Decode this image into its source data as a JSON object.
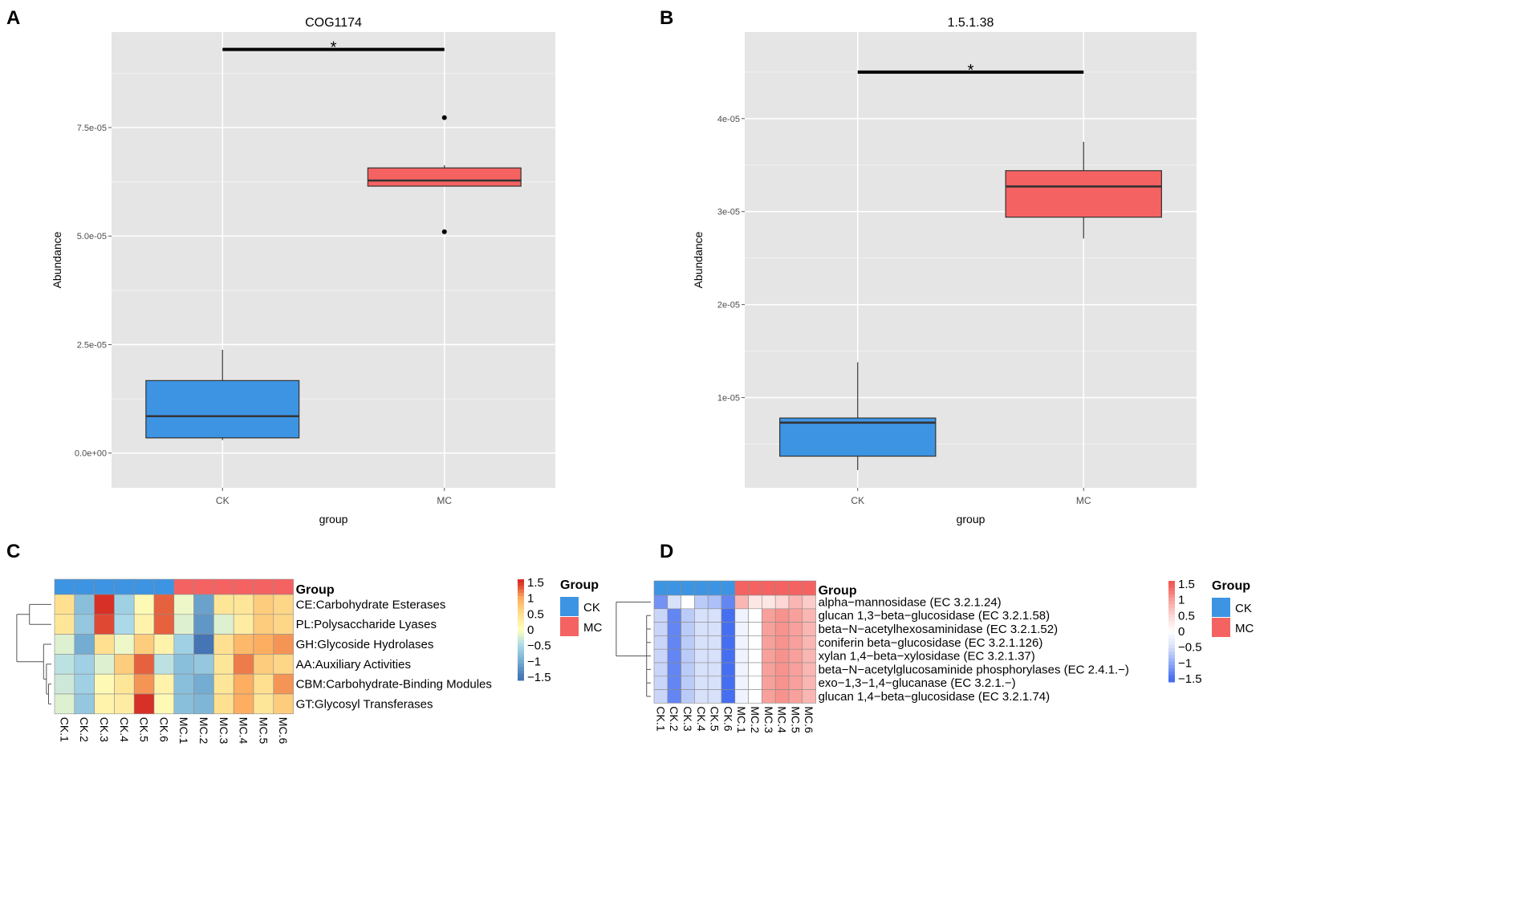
{
  "panels": {
    "A": "A",
    "B": "B",
    "C": "C",
    "D": "D"
  },
  "colors": {
    "CK": "#3d94e3",
    "MC": "#f56262",
    "panel_bg": "#e5e5e5",
    "grid": "#ffffff"
  },
  "chart_data": [
    {
      "id": "A",
      "type": "box",
      "title": "COG1174",
      "xlabel": "group",
      "ylabel": "Abundance",
      "ylim": [
        -8e-06,
        9.7e-05
      ],
      "yticks": [
        0,
        2.5e-05,
        5e-05,
        7.5e-05
      ],
      "ytick_labels": [
        "0.0e+00",
        "2.5e-05",
        "5.0e-05",
        "7.5e-05"
      ],
      "categories": [
        "CK",
        "MC"
      ],
      "boxes": [
        {
          "group": "CK",
          "min": 3e-06,
          "q1": 3.5e-06,
          "median": 8.5e-06,
          "q3": 1.67e-05,
          "max": 2.38e-05,
          "outliers": []
        },
        {
          "group": "MC",
          "min": 6.15e-05,
          "q1": 6.15e-05,
          "median": 6.28e-05,
          "q3": 6.57e-05,
          "max": 6.63e-05,
          "outliers": [
            7.73e-05,
            5.1e-05
          ]
        }
      ],
      "significance": {
        "label": "*",
        "value": 9.3e-05
      }
    },
    {
      "id": "B",
      "type": "box",
      "title": "1.5.1.38",
      "xlabel": "group",
      "ylabel": "Abundance",
      "ylim": [
        3e-07,
        4.93e-05
      ],
      "yticks": [
        1e-05,
        2e-05,
        3e-05,
        4e-05
      ],
      "ytick_labels": [
        "1e-05",
        "2e-05",
        "3e-05",
        "4e-05"
      ],
      "categories": [
        "CK",
        "MC"
      ],
      "boxes": [
        {
          "group": "CK",
          "min": 2.2e-06,
          "q1": 3.7e-06,
          "median": 7.3e-06,
          "q3": 7.8e-06,
          "max": 1.38e-05,
          "outliers": []
        },
        {
          "group": "MC",
          "min": 2.71e-05,
          "q1": 2.94e-05,
          "median": 3.27e-05,
          "q3": 3.44e-05,
          "max": 3.75e-05,
          "outliers": []
        }
      ],
      "significance": {
        "label": "*",
        "value": 4.5e-05
      }
    },
    {
      "id": "C",
      "type": "heatmap",
      "columns": [
        "CK.1",
        "CK.2",
        "CK.3",
        "CK.4",
        "CK.5",
        "CK.6",
        "MC.1",
        "MC.2",
        "MC.3",
        "MC.4",
        "MC.5",
        "MC.6"
      ],
      "column_groups": [
        "CK",
        "CK",
        "CK",
        "CK",
        "CK",
        "CK",
        "MC",
        "MC",
        "MC",
        "MC",
        "MC",
        "MC"
      ],
      "group_header": "Group",
      "rows": [
        "CE:Carbohydrate Esterases",
        "PL:Polysaccharide Lyases",
        "GH:Glycoside Hydrolases",
        "AA:Auxiliary Activities",
        "CBM:Carbohydrate-Binding Modules",
        "GT:Glycosyl Transferases"
      ],
      "values": [
        [
          0.5,
          -0.8,
          1.8,
          -0.6,
          0.1,
          1.3,
          -0.1,
          -1.1,
          0.4,
          0.4,
          0.7,
          0.6
        ],
        [
          0.4,
          -0.7,
          1.4,
          -0.5,
          0.2,
          1.3,
          -0.2,
          -1.2,
          -0.2,
          0.3,
          0.7,
          0.6
        ],
        [
          -0.2,
          -1.0,
          0.5,
          -0.1,
          0.7,
          0.2,
          -0.6,
          -1.6,
          0.5,
          0.9,
          1.0,
          1.1
        ],
        [
          -0.4,
          -0.6,
          -0.2,
          0.7,
          1.3,
          -0.4,
          -0.8,
          -0.7,
          0.4,
          1.2,
          0.7,
          0.6
        ],
        [
          -0.3,
          -0.6,
          0.1,
          0.4,
          1.1,
          0.2,
          -0.8,
          -1.0,
          0.4,
          1.0,
          0.5,
          1.1
        ],
        [
          -0.2,
          -0.7,
          0.2,
          0.3,
          1.5,
          0.1,
          -0.8,
          -0.9,
          0.5,
          1.0,
          0.4,
          0.7
        ]
      ],
      "scale_ticks": [
        1.5,
        1,
        0.5,
        0,
        -0.5,
        -1,
        -1.5
      ],
      "scale_labels": [
        "1.5",
        "1",
        "0.5",
        "0",
        "−0.5",
        "−1",
        "−1.5"
      ],
      "legend": {
        "title": "Group",
        "entries": [
          "CK",
          "MC"
        ]
      }
    },
    {
      "id": "D",
      "type": "heatmap",
      "columns": [
        "CK.1",
        "CK.2",
        "CK.3",
        "CK.4",
        "CK.5",
        "CK.6",
        "MC.1",
        "MC.2",
        "MC.3",
        "MC.4",
        "MC.5",
        "MC.6"
      ],
      "column_groups": [
        "CK",
        "CK",
        "CK",
        "CK",
        "CK",
        "CK",
        "MC",
        "MC",
        "MC",
        "MC",
        "MC",
        "MC"
      ],
      "group_header": "Group",
      "rows": [
        "alpha−mannosidase (EC 3.2.1.24)",
        "glucan 1,3−beta−glucosidase (EC 3.2.1.58)",
        "beta−N−acetylhexosaminidase (EC 3.2.1.52)",
        "coniferin beta−glucosidase (EC 3.2.1.126)",
        "xylan 1,4−beta−xylosidase (EC 3.2.1.37)",
        "beta−N−acetylglucosaminide phosphorylases (EC 2.4.1.−)",
        "exo−1,3−1,4−glucanase (EC 3.2.1.−)",
        "glucan 1,4−beta−glucosidase (EC 3.2.1.74)"
      ],
      "values": [
        [
          -1.2,
          -0.5,
          0.0,
          -0.7,
          -0.8,
          -1.3,
          0.8,
          0.3,
          0.3,
          0.5,
          0.8,
          0.6
        ],
        [
          -0.6,
          -1.3,
          -0.7,
          -0.5,
          -0.5,
          -1.5,
          -0.2,
          0.0,
          1.0,
          1.1,
          1.0,
          0.8
        ],
        [
          -0.6,
          -1.3,
          -0.7,
          -0.5,
          -0.5,
          -1.5,
          -0.2,
          0.0,
          1.0,
          1.1,
          1.0,
          0.8
        ],
        [
          -0.6,
          -1.3,
          -0.7,
          -0.5,
          -0.5,
          -1.5,
          -0.2,
          0.0,
          1.0,
          1.1,
          1.0,
          0.8
        ],
        [
          -0.6,
          -1.3,
          -0.7,
          -0.5,
          -0.5,
          -1.5,
          -0.2,
          0.0,
          1.0,
          1.1,
          1.0,
          0.8
        ],
        [
          -0.6,
          -1.3,
          -0.7,
          -0.5,
          -0.5,
          -1.5,
          -0.2,
          0.0,
          1.0,
          1.1,
          1.0,
          0.8
        ],
        [
          -0.6,
          -1.3,
          -0.7,
          -0.5,
          -0.5,
          -1.5,
          -0.2,
          0.0,
          1.0,
          1.1,
          1.0,
          0.8
        ],
        [
          -0.6,
          -1.3,
          -0.7,
          -0.5,
          -0.5,
          -1.5,
          -0.2,
          0.0,
          1.0,
          1.1,
          1.0,
          0.8
        ]
      ],
      "scale_ticks": [
        1.5,
        1,
        0.5,
        0,
        -0.5,
        -1,
        -1.5
      ],
      "scale_labels": [
        "1.5",
        "1",
        "0.5",
        "0",
        "−0.5",
        "−1",
        "−1.5"
      ],
      "legend": {
        "title": "Group",
        "entries": [
          "CK",
          "MC"
        ]
      }
    }
  ]
}
